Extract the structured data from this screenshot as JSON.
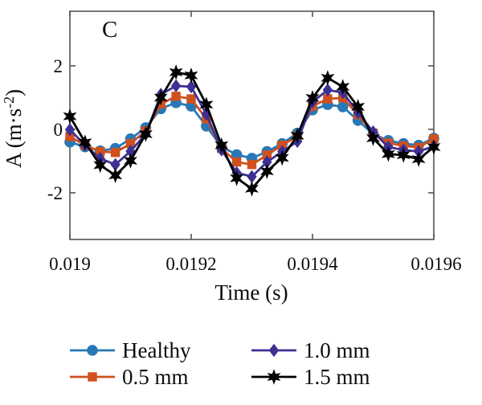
{
  "chart_data": {
    "type": "line",
    "panel_label": "C",
    "title": "",
    "xlabel": "Time (s)",
    "ylabel": "A (m·s⁻²)",
    "ylabel_parts": [
      "A (m·s",
      "-2",
      ")"
    ],
    "xlim": [
      0.019,
      0.0196
    ],
    "ylim": [
      -3.47,
      3.72
    ],
    "x_ticks": [
      0.019,
      0.0192,
      0.0194,
      0.0196
    ],
    "x_tick_labels": [
      "0.019",
      "0.0192",
      "0.0194",
      "0.0196"
    ],
    "y_ticks": [
      2,
      0,
      -2
    ],
    "y_tick_labels": [
      "2",
      "0",
      "-2"
    ],
    "grid": false,
    "legend_position": "below, two columns",
    "axis_color": "#545454",
    "x": [
      0.019,
      0.019025,
      0.01905,
      0.019075,
      0.0191,
      0.019125,
      0.01915,
      0.019175,
      0.0192,
      0.019225,
      0.01925,
      0.019275,
      0.0193,
      0.019325,
      0.01935,
      0.019375,
      0.0194,
      0.019425,
      0.01945,
      0.019475,
      0.0195,
      0.019525,
      0.01955,
      0.019575,
      0.0196
    ],
    "series": [
      {
        "name": "Healthy",
        "color": "#2878b5",
        "marker": "circle",
        "values": [
          -0.4,
          -0.55,
          -0.68,
          -0.6,
          -0.3,
          0.05,
          0.65,
          0.84,
          0.73,
          0.1,
          -0.55,
          -0.8,
          -0.91,
          -0.7,
          -0.45,
          -0.12,
          0.61,
          0.78,
          0.71,
          0.28,
          -0.15,
          -0.35,
          -0.45,
          -0.5,
          -0.28
        ]
      },
      {
        "name": "0.5 mm",
        "color": "#d0501e",
        "marker": "square",
        "values": [
          -0.23,
          -0.5,
          -0.7,
          -0.73,
          -0.45,
          -0.05,
          0.8,
          1.04,
          0.96,
          0.33,
          -0.6,
          -1.03,
          -1.11,
          -0.81,
          -0.5,
          -0.22,
          0.73,
          0.96,
          0.99,
          0.46,
          -0.12,
          -0.43,
          -0.52,
          -0.57,
          -0.3
        ]
      },
      {
        "name": "1.0 mm",
        "color": "#3c3093",
        "marker": "diamond",
        "values": [
          -0.01,
          -0.5,
          -0.92,
          -1.11,
          -0.69,
          -0.15,
          1.1,
          1.37,
          1.34,
          0.48,
          -0.65,
          -1.37,
          -1.49,
          -1.03,
          -0.7,
          -0.38,
          0.86,
          1.24,
          1.16,
          0.53,
          -0.08,
          -0.56,
          -0.65,
          -0.7,
          -0.53
        ]
      },
      {
        "name": "1.5 mm",
        "color": "#000000",
        "marker": "hexagram",
        "values": [
          0.41,
          -0.41,
          -1.13,
          -1.45,
          -0.99,
          -0.15,
          1.0,
          1.8,
          1.7,
          0.78,
          -0.5,
          -1.54,
          -1.87,
          -1.32,
          -0.9,
          -0.2,
          0.99,
          1.62,
          1.34,
          0.71,
          -0.28,
          -0.78,
          -0.81,
          -0.94,
          -0.56
        ]
      }
    ]
  }
}
